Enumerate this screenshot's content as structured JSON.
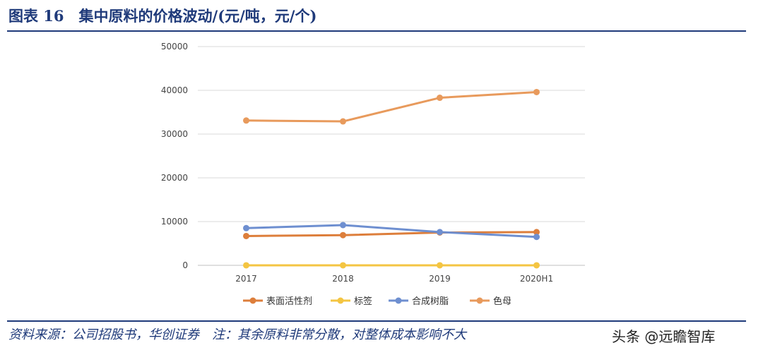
{
  "header": {
    "title": "图表 16　集中原料的价格波动/(元/吨，元/个)"
  },
  "footer": {
    "source": "资料来源：公司招股书，华创证券　注：其余原料非常分散，对整体成本影响不大",
    "watermark": "头条 @远瞻智库"
  },
  "chart_data": {
    "type": "line",
    "title": "",
    "xlabel": "",
    "ylabel": "",
    "categories": [
      "2017",
      "2018",
      "2019",
      "2020H1"
    ],
    "ylim": [
      0,
      50000
    ],
    "yticks": [
      0,
      10000,
      20000,
      30000,
      40000,
      50000
    ],
    "grid": true,
    "legend_position": "bottom",
    "series": [
      {
        "name": "表面活性剂",
        "color": "#dd7e3b",
        "values": [
          6700,
          6900,
          7500,
          7600
        ]
      },
      {
        "name": "标签",
        "color": "#f4c542",
        "values": [
          5,
          5,
          5,
          5
        ]
      },
      {
        "name": "合成树脂",
        "color": "#6e8fd0",
        "values": [
          8500,
          9200,
          7600,
          6500
        ]
      },
      {
        "name": "色母",
        "color": "#e89a5c",
        "values": [
          33100,
          32900,
          38300,
          39600
        ]
      }
    ]
  }
}
